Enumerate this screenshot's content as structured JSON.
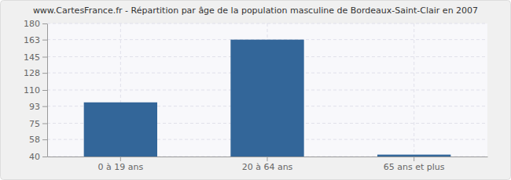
{
  "chart_data": {
    "type": "bar",
    "title": "www.CartesFrance.fr - Répartition par âge de la population masculine de Bordeaux-Saint-Clair en 2007",
    "categories": [
      "0 à 19 ans",
      "20 à 64 ans",
      "65 ans et plus"
    ],
    "values": [
      97,
      163,
      42
    ],
    "color": "#336699",
    "ylim": [
      40,
      180
    ],
    "yticks": [
      40,
      58,
      75,
      93,
      110,
      128,
      145,
      163,
      180
    ],
    "grid": true
  }
}
